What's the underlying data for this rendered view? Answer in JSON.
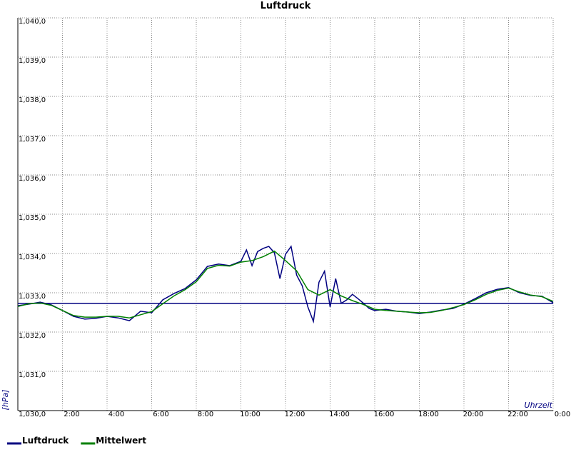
{
  "chart_data": {
    "type": "line",
    "title": "Luftdruck",
    "y_label": "[hPa]",
    "x_label": "Uhrzeit",
    "xlim": [
      0,
      24
    ],
    "ylim": [
      1030,
      1040
    ],
    "xticks": [
      {
        "value": 2,
        "label": "2:00"
      },
      {
        "value": 4,
        "label": "4:00"
      },
      {
        "value": 6,
        "label": "6:00"
      },
      {
        "value": 8,
        "label": "8:00"
      },
      {
        "value": 10,
        "label": "10:00"
      },
      {
        "value": 12,
        "label": "12:00"
      },
      {
        "value": 14,
        "label": "14:00"
      },
      {
        "value": 16,
        "label": "16:00"
      },
      {
        "value": 18,
        "label": "18:00"
      },
      {
        "value": 20,
        "label": "20:00"
      },
      {
        "value": 22,
        "label": "22:00"
      },
      {
        "value": 24,
        "label": "0:00"
      }
    ],
    "yticks": [
      {
        "value": 1030,
        "label": "1,030,0"
      },
      {
        "value": 1031,
        "label": "1,031,0"
      },
      {
        "value": 1032,
        "label": "1,032,0"
      },
      {
        "value": 1033,
        "label": "1,033,0"
      },
      {
        "value": 1034,
        "label": "1,034,0"
      },
      {
        "value": 1035,
        "label": "1,035,0"
      },
      {
        "value": 1036,
        "label": "1,036,0"
      },
      {
        "value": 1037,
        "label": "1,037,0"
      },
      {
        "value": 1038,
        "label": "1,038,0"
      },
      {
        "value": 1039,
        "label": "1,039,0"
      },
      {
        "value": 1040,
        "label": "1,040,0"
      }
    ],
    "grid": true,
    "reference_line": {
      "value": 1032.73,
      "color": "#000080"
    },
    "series": [
      {
        "name": "Luftdruck",
        "color": "#000080",
        "x": [
          0,
          0.5,
          1,
          1.5,
          2,
          2.5,
          3,
          3.5,
          4,
          4.5,
          5,
          5.5,
          6,
          6.5,
          7,
          7.5,
          8,
          8.5,
          9,
          9.5,
          10,
          10.25,
          10.5,
          10.75,
          11,
          11.25,
          11.5,
          11.75,
          12,
          12.25,
          12.5,
          12.75,
          13,
          13.25,
          13.5,
          13.75,
          14,
          14.25,
          14.5,
          14.75,
          15,
          15.25,
          15.5,
          15.75,
          16,
          16.5,
          17,
          17.5,
          18,
          18.5,
          19,
          19.5,
          20,
          20.5,
          21,
          21.5,
          22,
          22.5,
          23,
          23.5,
          24
        ],
        "values": [
          1032.67,
          1032.71,
          1032.76,
          1032.69,
          1032.55,
          1032.4,
          1032.33,
          1032.35,
          1032.4,
          1032.36,
          1032.29,
          1032.53,
          1032.49,
          1032.82,
          1032.98,
          1033.11,
          1033.33,
          1033.67,
          1033.73,
          1033.69,
          1033.8,
          1034.09,
          1033.69,
          1034.05,
          1034.13,
          1034.18,
          1034.02,
          1033.36,
          1033.98,
          1034.18,
          1033.45,
          1033.18,
          1032.64,
          1032.27,
          1033.27,
          1033.55,
          1032.64,
          1033.36,
          1032.73,
          1032.82,
          1032.96,
          1032.85,
          1032.73,
          1032.6,
          1032.55,
          1032.58,
          1032.53,
          1032.51,
          1032.47,
          1032.51,
          1032.56,
          1032.6,
          1032.71,
          1032.85,
          1033.0,
          1033.09,
          1033.13,
          1033.0,
          1032.93,
          1032.91,
          1032.75
        ]
      },
      {
        "name": "Mittelwert",
        "color": "#008000",
        "x": [
          0,
          0.5,
          1,
          1.5,
          2,
          2.5,
          3,
          3.5,
          4,
          4.5,
          5,
          5.5,
          6,
          6.5,
          7,
          7.5,
          8,
          8.5,
          9,
          9.5,
          10,
          10.5,
          11,
          11.5,
          12,
          12.5,
          13,
          13.5,
          14,
          14.5,
          15,
          15.5,
          16,
          16.5,
          17,
          17.5,
          18,
          18.5,
          19,
          19.5,
          20,
          20.5,
          21,
          21.5,
          22,
          22.5,
          23,
          23.5,
          24
        ],
        "values": [
          1032.65,
          1032.72,
          1032.74,
          1032.68,
          1032.55,
          1032.42,
          1032.38,
          1032.38,
          1032.4,
          1032.4,
          1032.36,
          1032.44,
          1032.52,
          1032.72,
          1032.92,
          1033.08,
          1033.28,
          1033.62,
          1033.7,
          1033.68,
          1033.78,
          1033.82,
          1033.92,
          1034.06,
          1033.82,
          1033.56,
          1033.08,
          1032.94,
          1033.08,
          1032.92,
          1032.8,
          1032.7,
          1032.58,
          1032.55,
          1032.53,
          1032.51,
          1032.49,
          1032.5,
          1032.55,
          1032.62,
          1032.7,
          1032.82,
          1032.96,
          1033.06,
          1033.12,
          1033.02,
          1032.94,
          1032.9,
          1032.78
        ]
      }
    ]
  }
}
